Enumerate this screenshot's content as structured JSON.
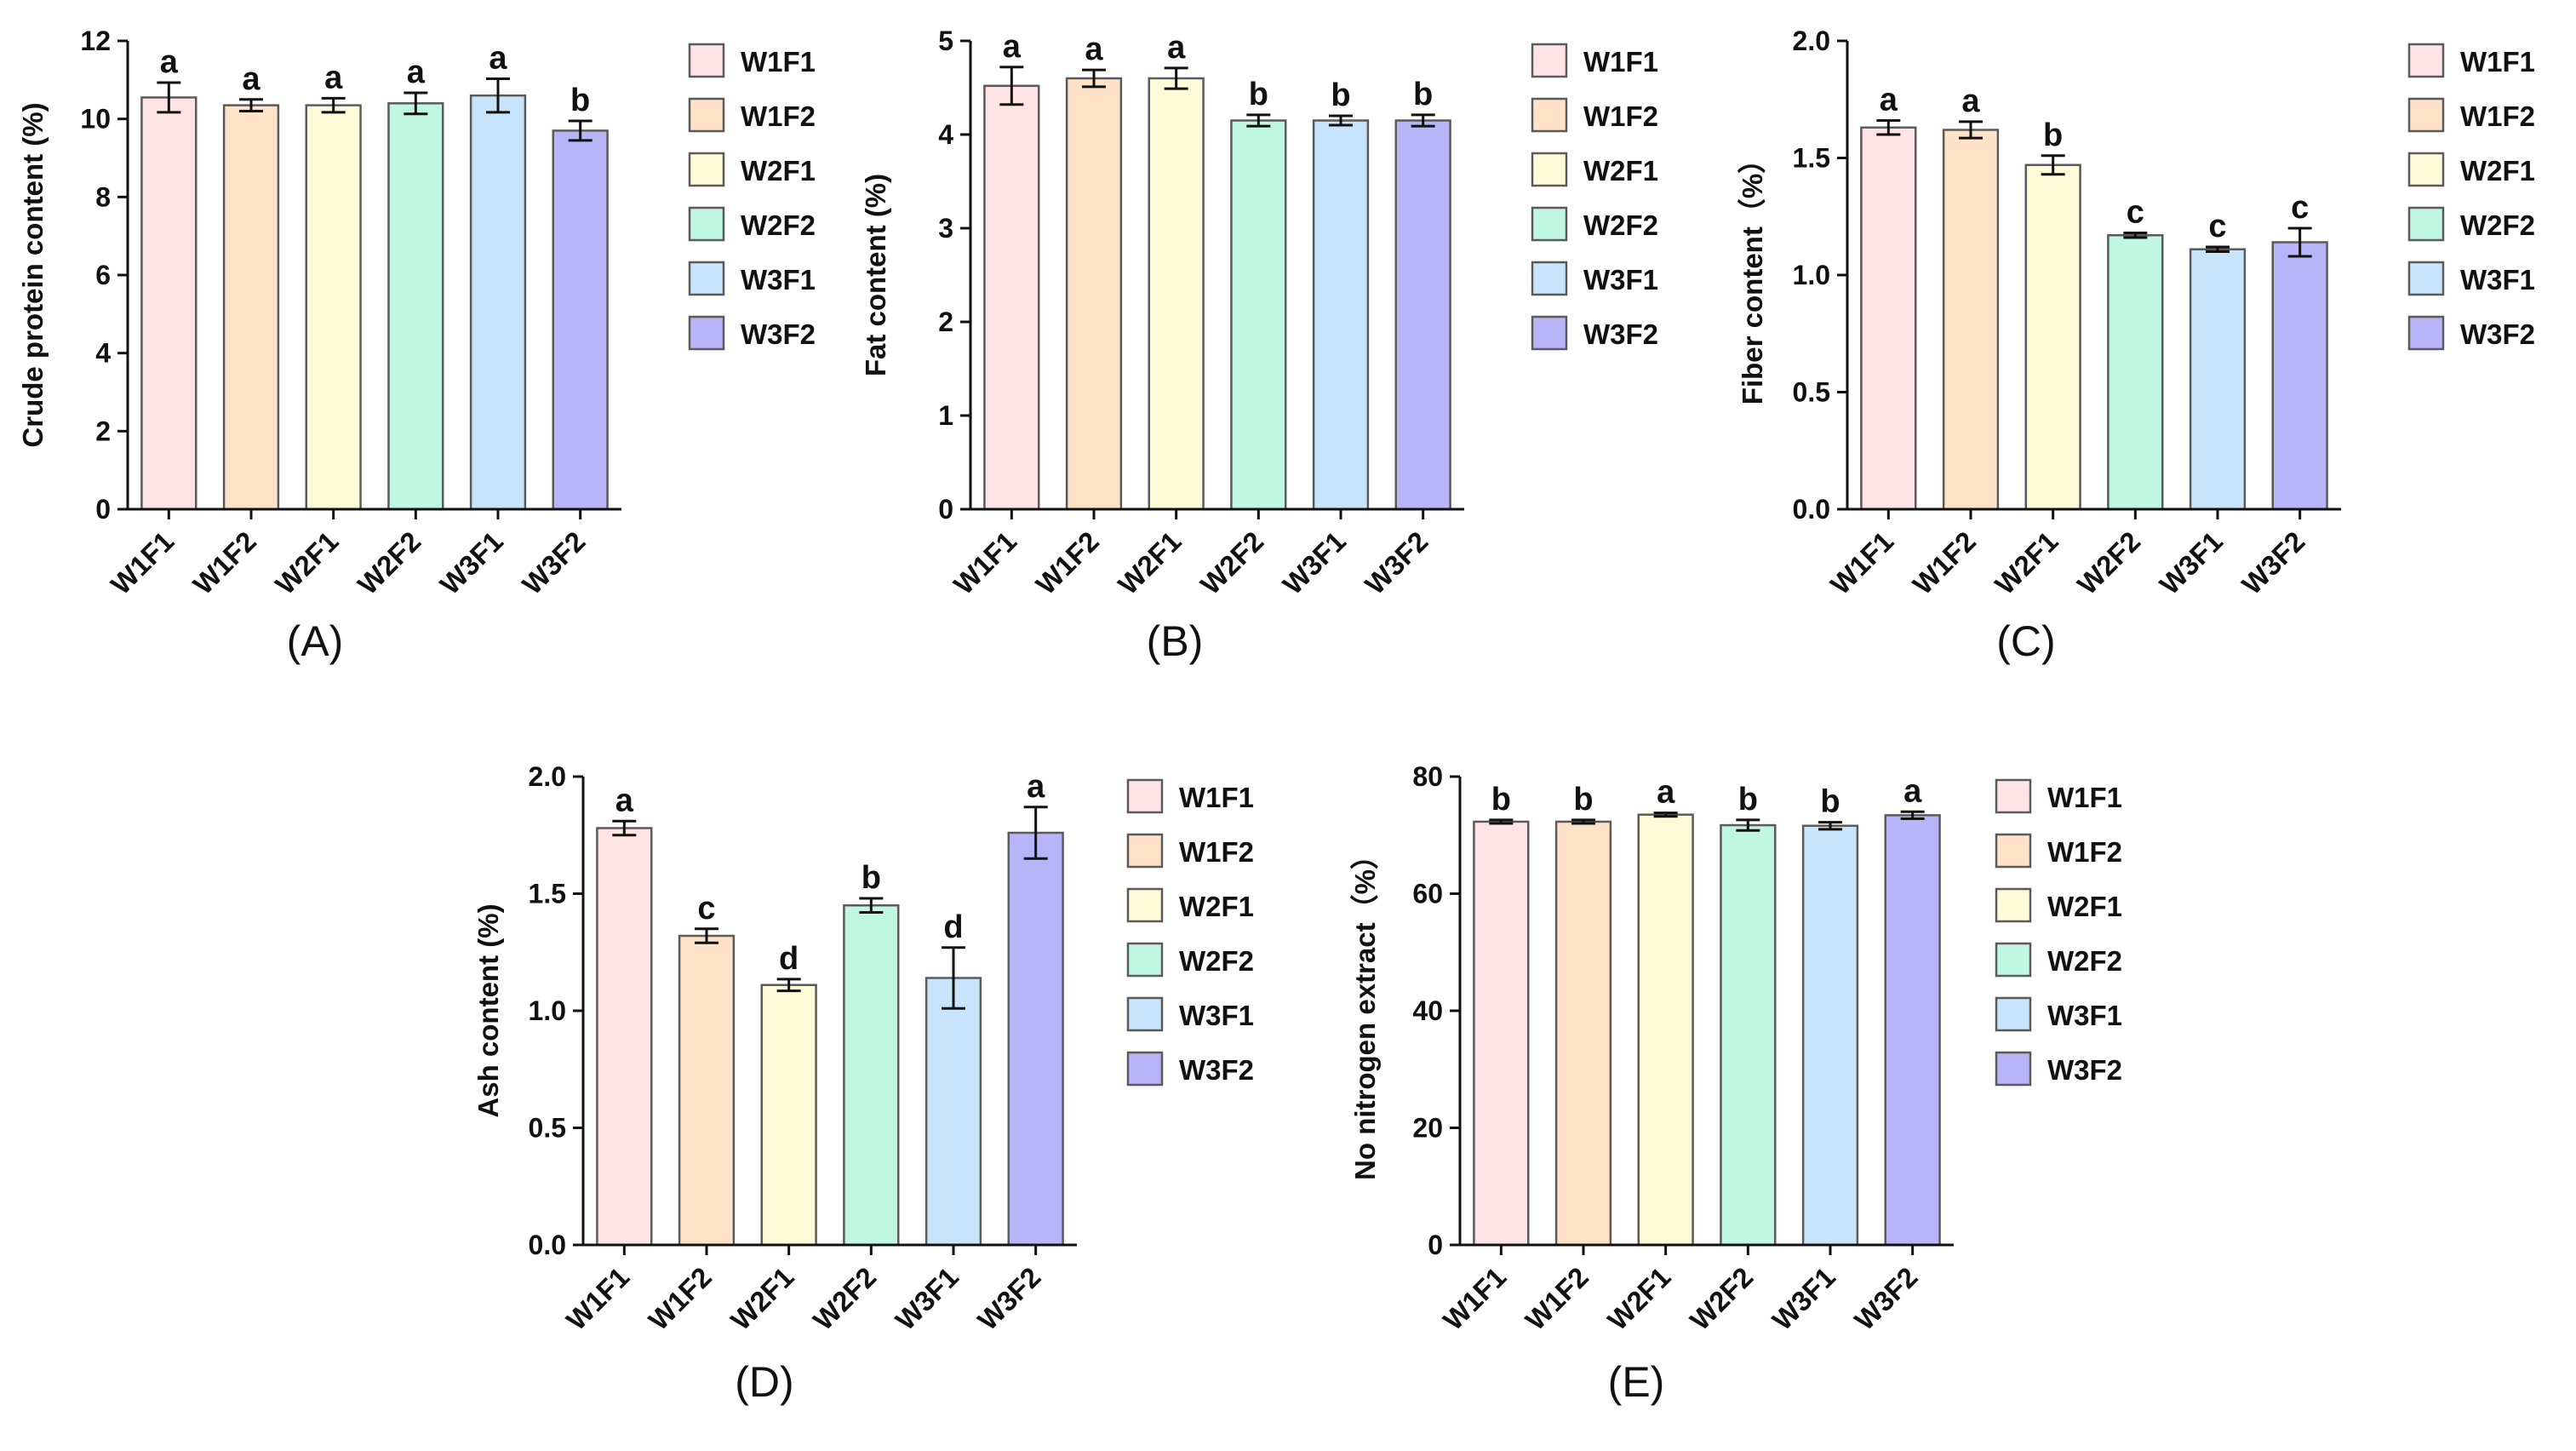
{
  "chart_data": [
    {
      "type": "bar",
      "caption": "(A)",
      "ylabel": "Crude protein content (%)",
      "xlabel": "",
      "ylim": [
        0,
        12
      ],
      "yticks": [
        0,
        2,
        4,
        6,
        8,
        10,
        12
      ],
      "categories": [
        "W1F1",
        "W1F2",
        "W2F1",
        "W2F2",
        "W3F1",
        "W3F2"
      ],
      "values": [
        10.55,
        10.35,
        10.35,
        10.4,
        10.6,
        9.7
      ],
      "errors": [
        0.38,
        0.15,
        0.18,
        0.27,
        0.43,
        0.25
      ],
      "significance": [
        "a",
        "a",
        "a",
        "a",
        "a",
        "b"
      ]
    },
    {
      "type": "bar",
      "caption": "(B)",
      "ylabel": "Fat content (%)",
      "xlabel": "",
      "ylim": [
        0,
        5
      ],
      "yticks": [
        0,
        1,
        2,
        3,
        4,
        5
      ],
      "categories": [
        "W1F1",
        "W1F2",
        "W2F1",
        "W2F2",
        "W3F1",
        "W3F2"
      ],
      "values": [
        4.52,
        4.6,
        4.6,
        4.15,
        4.15,
        4.15
      ],
      "errors": [
        0.2,
        0.09,
        0.11,
        0.06,
        0.05,
        0.06
      ],
      "significance": [
        "a",
        "a",
        "a",
        "b",
        "b",
        "b"
      ]
    },
    {
      "type": "bar",
      "caption": "(C)",
      "ylabel": "Fiber content（%）",
      "xlabel": "",
      "ylim": [
        0,
        2
      ],
      "yticks": [
        "0.0",
        "0.5",
        "1.0",
        "1.5",
        "2.0"
      ],
      "categories": [
        "W1F1",
        "W1F2",
        "W2F1",
        "W2F2",
        "W3F1",
        "W3F2"
      ],
      "values": [
        1.63,
        1.62,
        1.47,
        1.17,
        1.11,
        1.14
      ],
      "errors": [
        0.03,
        0.035,
        0.04,
        0.01,
        0.01,
        0.06
      ],
      "significance": [
        "a",
        "a",
        "b",
        "c",
        "c",
        "c"
      ]
    },
    {
      "type": "bar",
      "caption": "(D)",
      "ylabel": "Ash content (%)",
      "xlabel": "",
      "ylim": [
        0,
        2
      ],
      "yticks": [
        "0.0",
        "0.5",
        "1.0",
        "1.5",
        "2.0"
      ],
      "categories": [
        "W1F1",
        "W1F2",
        "W2F1",
        "W2F2",
        "W3F1",
        "W3F2"
      ],
      "values": [
        1.78,
        1.32,
        1.11,
        1.45,
        1.14,
        1.76
      ],
      "errors": [
        0.03,
        0.03,
        0.025,
        0.03,
        0.13,
        0.11
      ],
      "significance": [
        "a",
        "c",
        "d",
        "b",
        "d",
        "a"
      ]
    },
    {
      "type": "bar",
      "caption": "(E)",
      "ylabel": "No nitrogen extract（%）",
      "xlabel": "",
      "ylim": [
        0,
        80
      ],
      "yticks": [
        0,
        20,
        40,
        60,
        80
      ],
      "categories": [
        "W1F1",
        "W1F2",
        "W2F1",
        "W2F2",
        "W3F1",
        "W3F2"
      ],
      "values": [
        72.3,
        72.3,
        73.5,
        71.7,
        71.6,
        73.4
      ],
      "errors": [
        0.3,
        0.3,
        0.3,
        0.9,
        0.6,
        0.6
      ],
      "significance": [
        "b",
        "b",
        "a",
        "b",
        "b",
        "a"
      ]
    }
  ],
  "legend": {
    "entries": [
      "W1F1",
      "W1F2",
      "W2F1",
      "W2F2",
      "W3F1",
      "W3F2"
    ]
  },
  "colors": {
    "W1F1": "#ffe4e6",
    "W1F2": "#ffe3c9",
    "W2F1": "#fffbd8",
    "W2F2": "#bff7e3",
    "W3F1": "#c8e4fb",
    "W3F2": "#b7b5f8",
    "bar_stroke": "#5a5a5a",
    "axis": "#111111"
  }
}
